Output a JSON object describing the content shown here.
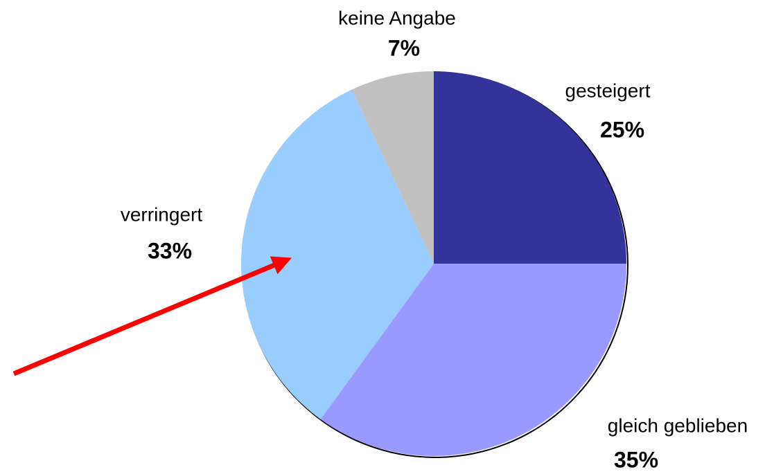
{
  "chart_data": {
    "type": "pie",
    "categories": [
      "gesteigert",
      "gleich geblieben",
      "verringert",
      "keine Angabe"
    ],
    "values": [
      25,
      35,
      33,
      7
    ],
    "value_labels": [
      "25%",
      "35%",
      "33%",
      "7%"
    ],
    "colors": [
      "#333399",
      "#9999ff",
      "#99ccff",
      "#c0c0c0"
    ]
  }
}
